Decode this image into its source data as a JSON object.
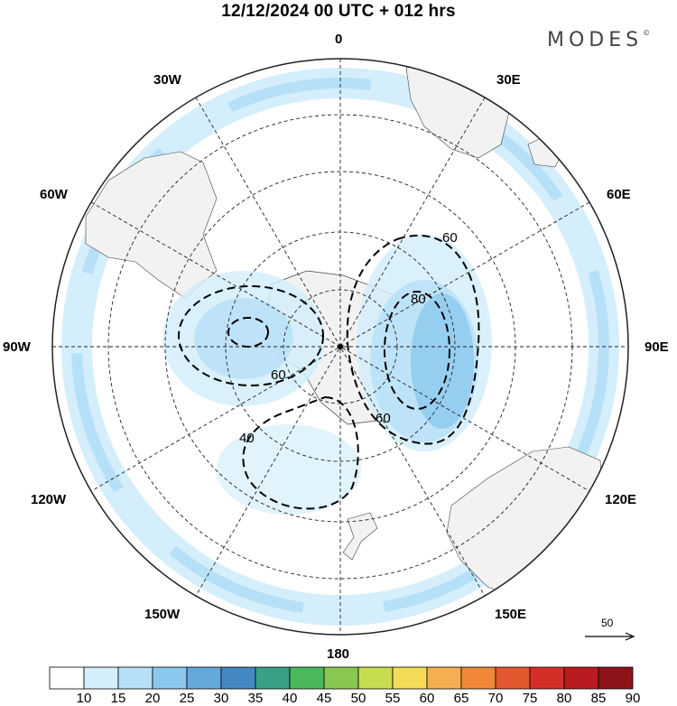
{
  "title": "12/12/2024  00 UTC  + 012 hrs",
  "brand": "MODES",
  "brand_mark": "©",
  "longitude_labels": {
    "0": "0",
    "30E": "30E",
    "60E": "60E",
    "90E": "90E",
    "120E": "120E",
    "150E": "150E",
    "180": "180",
    "150W": "150W",
    "120W": "120W",
    "90W": "90W",
    "60W": "60W",
    "30W": "30W"
  },
  "contour_labels": [
    "60",
    "80",
    "60",
    "40",
    "60"
  ],
  "colorbar": {
    "ticks": [
      "10",
      "15",
      "20",
      "25",
      "30",
      "35",
      "40",
      "45",
      "50",
      "55",
      "60",
      "65",
      "70",
      "75",
      "80",
      "85",
      "90"
    ],
    "colors": [
      "#ffffff",
      "#d4eefc",
      "#b6e0f8",
      "#8cc8ee",
      "#64a8dc",
      "#4488c4",
      "#3aa088",
      "#4cb85c",
      "#88c850",
      "#c8dc50",
      "#f4dc58",
      "#f4b050",
      "#f08838",
      "#e45830",
      "#d42e28",
      "#b81c20",
      "#8c1418"
    ]
  },
  "scale_vector": {
    "label": "50"
  },
  "colors": {
    "land": "#f2f2f2",
    "wind_light": "#d4eefc",
    "wind_mid": "#b6e0f8",
    "wind_strong": "#8cc8ee"
  }
}
